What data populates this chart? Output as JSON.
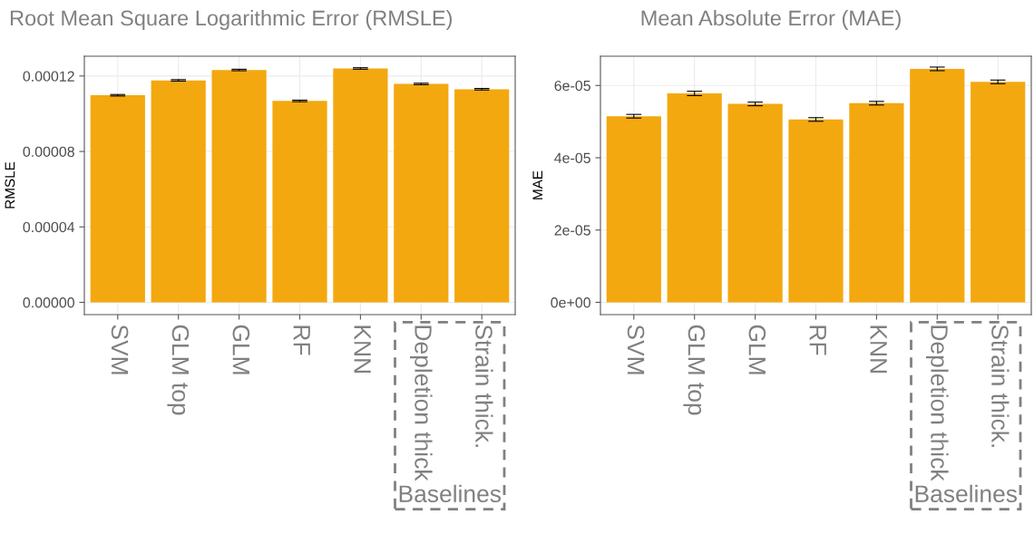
{
  "chart_data": [
    {
      "type": "bar",
      "title": "Root Mean Square Logarithmic Error (RMSLE)",
      "ylabel": "RMSLE",
      "categories": [
        "SVM",
        "GLM top",
        "GLM",
        "RF",
        "KNN",
        "Depletion thick",
        "Strain thick."
      ],
      "values": [
        0.0001098,
        0.0001177,
        0.0001232,
        0.0001068,
        0.000124,
        0.0001158,
        0.000113
      ],
      "errors": [
        4e-07,
        4e-07,
        4e-07,
        4e-07,
        4e-07,
        4e-07,
        4e-07
      ],
      "color": "#f3a80f",
      "ylim": [
        -6.5e-06,
        0.0001305
      ],
      "yticks": [
        {
          "value": 0,
          "label": "0.00000"
        },
        {
          "value": 4e-05,
          "label": "0.00004"
        },
        {
          "value": 8e-05,
          "label": "0.00008"
        },
        {
          "value": 0.00012,
          "label": "0.00012"
        }
      ],
      "grid": true,
      "annotations": [
        "Baselines"
      ]
    },
    {
      "type": "bar",
      "title": "Mean Absolute Error (MAE)",
      "ylabel": "MAE",
      "categories": [
        "SVM",
        "GLM top",
        "GLM",
        "RF",
        "KNN",
        "Depletion thick",
        "Strain thick."
      ],
      "values": [
        5.15e-05,
        5.78e-05,
        5.49e-05,
        5.06e-05,
        5.51e-05,
        6.46e-05,
        6.1e-05
      ],
      "errors": [
        5e-07,
        6e-07,
        5e-07,
        5e-07,
        5e-07,
        5e-07,
        5e-07
      ],
      "color": "#f3a80f",
      "ylim": [
        -3.4e-06,
        6.81e-05
      ],
      "yticks": [
        {
          "value": 0,
          "label": "0e+00"
        },
        {
          "value": 2e-05,
          "label": "2e-05"
        },
        {
          "value": 4e-05,
          "label": "4e-05"
        },
        {
          "value": 6e-05,
          "label": "6e-05"
        }
      ],
      "grid": true,
      "annotations": [
        "Baselines"
      ]
    }
  ]
}
